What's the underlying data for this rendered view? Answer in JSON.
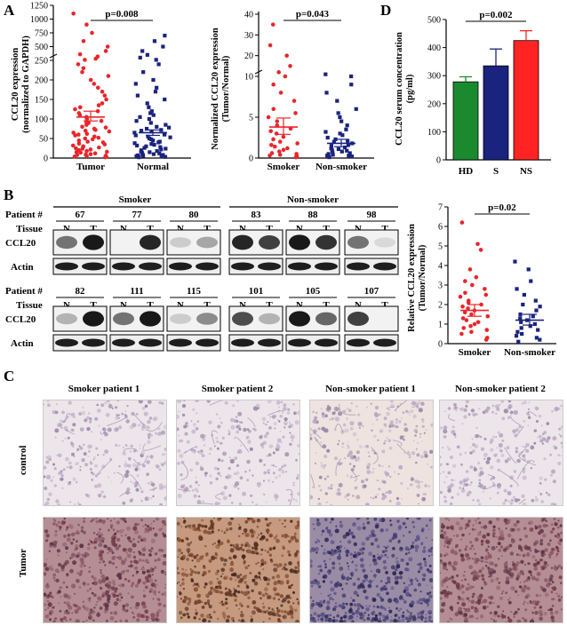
{
  "panels": {
    "A": "A",
    "B": "B",
    "C": "C",
    "D": "D"
  },
  "chart_data": [
    {
      "id": "A1",
      "type": "scatter",
      "categories": [
        "Tumor",
        "Normal"
      ],
      "ylabel_line1": "CCL20 expression",
      "ylabel_line2": "(normalized to GAPDH)",
      "yticks": [
        "0",
        "50",
        "100",
        "150",
        "200",
        "250",
        "500",
        "750",
        "1000",
        "1250"
      ],
      "pvalue": "p=0.008",
      "series": [
        {
          "name": "Tumor",
          "color": "#e8262b",
          "mean": 105,
          "sem_low": 95,
          "sem_high": 120,
          "values": [
            2,
            3,
            4,
            5,
            6,
            8,
            9,
            10,
            12,
            14,
            15,
            16,
            18,
            20,
            22,
            24,
            25,
            27,
            29,
            30,
            32,
            35,
            37,
            40,
            42,
            45,
            48,
            50,
            52,
            55,
            58,
            60,
            62,
            65,
            68,
            70,
            72,
            75,
            78,
            80,
            85,
            90,
            92,
            95,
            100,
            105,
            110,
            115,
            120,
            125,
            130,
            135,
            140,
            150,
            160,
            170,
            180,
            190,
            200,
            210,
            220,
            230,
            240,
            260,
            280,
            320,
            360,
            420,
            500,
            600,
            750,
            900,
            1100
          ]
        },
        {
          "name": "Normal",
          "color": "#1a237e",
          "mean": 65,
          "sem_low": 58,
          "sem_high": 72,
          "values": [
            2,
            3,
            4,
            5,
            6,
            7,
            8,
            9,
            10,
            12,
            13,
            15,
            17,
            18,
            20,
            22,
            24,
            26,
            28,
            30,
            32,
            34,
            36,
            38,
            40,
            42,
            45,
            48,
            50,
            53,
            55,
            58,
            60,
            62,
            65,
            68,
            70,
            72,
            75,
            78,
            80,
            85,
            90,
            95,
            100,
            105,
            110,
            115,
            120,
            130,
            140,
            150,
            160,
            170,
            180,
            190,
            200,
            220,
            240,
            260,
            300,
            350,
            420,
            500,
            600,
            700
          ]
        }
      ]
    },
    {
      "id": "A2",
      "type": "scatter",
      "categories": [
        "Smoker",
        "Non-smoker"
      ],
      "ylabel_line1": "Normalized CCL20 expression",
      "ylabel_line2": "(Tumor/Normal)",
      "yticks": [
        "0",
        "5",
        "10",
        "20",
        "30",
        "40"
      ],
      "pvalue": "p=0.043",
      "series": [
        {
          "name": "Smoker",
          "color": "#e8262b",
          "mean": 3.8,
          "sem_low": 2.9,
          "sem_high": 4.9,
          "values": [
            0.1,
            0.2,
            0.3,
            0.4,
            0.5,
            0.6,
            0.8,
            1.0,
            1.2,
            1.4,
            1.6,
            1.8,
            2.0,
            2.3,
            2.6,
            3.0,
            3.3,
            3.6,
            4.0,
            4.5,
            5.0,
            5.5,
            6.0,
            7.0,
            8.0,
            9.0,
            10,
            12,
            15,
            20,
            25,
            35
          ]
        },
        {
          "name": "Non-smoker",
          "color": "#1a237e",
          "mean": 1.8,
          "sem_low": 1.4,
          "sem_high": 2.3,
          "values": [
            0.1,
            0.2,
            0.3,
            0.3,
            0.4,
            0.5,
            0.6,
            0.7,
            0.8,
            0.9,
            1.0,
            1.1,
            1.2,
            1.3,
            1.5,
            1.6,
            1.8,
            2.0,
            2.1,
            2.3,
            2.5,
            2.8,
            3.0,
            3.2,
            3.5,
            4.0,
            4.5,
            5.0,
            5.5,
            6.0,
            7.0,
            8.0,
            9.0,
            10,
            11
          ]
        }
      ]
    },
    {
      "id": "D",
      "type": "bar",
      "categories": [
        "HD",
        "S",
        "NS"
      ],
      "values": [
        278,
        335,
        425
      ],
      "errors": [
        18,
        60,
        35
      ],
      "colors": [
        "#1b8a2e",
        "#1a237e",
        "#ff2323"
      ],
      "ylabel_line1": "CCL20 serum concentration",
      "ylabel_line2": "(pg/ml)",
      "ylim": [
        0,
        500
      ],
      "yticks": [
        "0",
        "100",
        "200",
        "300",
        "400",
        "500"
      ],
      "pvalue": "p=0.002"
    },
    {
      "id": "B-quant",
      "type": "scatter",
      "categories": [
        "Smoker",
        "Non-smoker"
      ],
      "ylabel_line1": "Relative CCL20 expression",
      "ylabel_line2": "(Tumor/Normal)",
      "ylim": [
        0,
        7
      ],
      "yticks": [
        "0",
        "1",
        "2",
        "3",
        "4",
        "5",
        "6",
        "7"
      ],
      "pvalue": "p=0.02",
      "series": [
        {
          "name": "Smoker",
          "color": "#e8262b",
          "mean": 1.7,
          "sem_low": 1.4,
          "sem_high": 2.0,
          "values": [
            0.2,
            0.3,
            0.5,
            0.6,
            0.7,
            0.8,
            0.9,
            1.0,
            1.1,
            1.2,
            1.3,
            1.4,
            1.5,
            1.6,
            1.7,
            1.8,
            1.9,
            2.0,
            2.1,
            2.2,
            2.4,
            2.5,
            2.6,
            2.8,
            3.0,
            3.2,
            3.4,
            3.8,
            4.8,
            5.1,
            6.2
          ]
        },
        {
          "name": "Non-smoker",
          "color": "#1a237e",
          "mean": 1.2,
          "sem_low": 0.95,
          "sem_high": 1.5,
          "values": [
            0.1,
            0.2,
            0.3,
            0.4,
            0.5,
            0.6,
            0.7,
            0.8,
            0.9,
            1.0,
            1.1,
            1.2,
            1.3,
            1.4,
            1.5,
            1.7,
            1.9,
            2.0,
            2.2,
            2.5,
            2.8,
            3.2,
            3.8,
            4.2
          ]
        }
      ]
    }
  ],
  "western": {
    "groups": [
      "Smoker",
      "Non-smoker"
    ],
    "patient_label": "Patient #",
    "tissue_label": "Tissue",
    "ccl20_label": "CCL20",
    "actin_label": "Actin",
    "n_label": "N",
    "t_label": "T",
    "row1_patients": [
      "67",
      "77",
      "80",
      "83",
      "88",
      "98"
    ],
    "row2_patients": [
      "82",
      "111",
      "115",
      "101",
      "105",
      "107"
    ]
  },
  "ihc": {
    "columns": [
      "Smoker patient 1",
      "Smoker patient 2",
      "Non-smoker patient 1",
      "Non-smoker patient 2"
    ],
    "rows": [
      "control",
      "Tumor"
    ]
  }
}
